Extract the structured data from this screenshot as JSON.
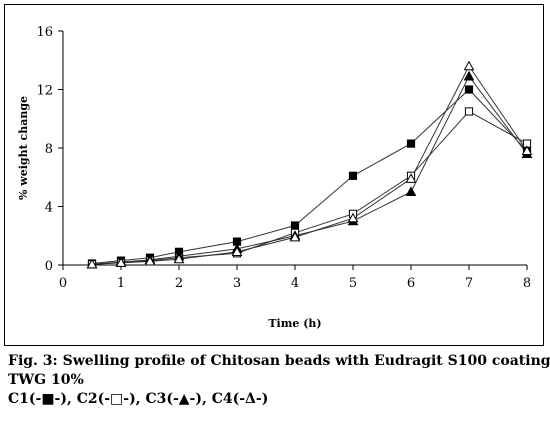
{
  "chart_data": {
    "type": "line",
    "xlabel": "Time (h)",
    "ylabel": "% weight change",
    "xlim": [
      0,
      8
    ],
    "ylim": [
      0,
      16
    ],
    "x_ticks": [
      "0",
      "1",
      "2",
      "3",
      "4",
      "5",
      "6",
      "7",
      "8"
    ],
    "y_ticks": [
      "0",
      "4",
      "8",
      "12",
      "16"
    ],
    "grid": false,
    "series": [
      {
        "name": "C1",
        "marker": "filled-square",
        "x": [
          0.5,
          1,
          1.5,
          2,
          3,
          4,
          5,
          6,
          7,
          8
        ],
        "y": [
          0.1,
          0.3,
          0.5,
          0.9,
          1.6,
          2.7,
          6.1,
          8.3,
          12.0,
          7.8
        ]
      },
      {
        "name": "C2",
        "marker": "open-square",
        "x": [
          0.5,
          1,
          1.5,
          2,
          3,
          4,
          5,
          6,
          7,
          8
        ],
        "y": [
          0.05,
          0.15,
          0.3,
          0.5,
          0.8,
          2.2,
          3.5,
          6.1,
          10.5,
          8.3
        ]
      },
      {
        "name": "C3",
        "marker": "filled-triangle",
        "x": [
          0.5,
          1,
          1.5,
          2,
          3,
          4,
          5,
          6,
          7,
          8
        ],
        "y": [
          0.05,
          0.2,
          0.35,
          0.6,
          1.1,
          2.0,
          3.0,
          5.0,
          12.9,
          7.6
        ]
      },
      {
        "name": "C4",
        "marker": "open-triangle",
        "x": [
          0.5,
          1,
          1.5,
          2,
          3,
          4,
          5,
          6,
          7,
          8
        ],
        "y": [
          0.05,
          0.15,
          0.25,
          0.4,
          0.9,
          1.9,
          3.2,
          5.9,
          13.6,
          7.8
        ]
      }
    ]
  },
  "caption": {
    "line1": "Fig. 3: Swelling profile of Chitosan beads with Eudragit S100 coating",
    "line2": "TWG 10%",
    "line3": "C1(-■-), C2(-□-), C3(-▲-), C4(-Δ-)"
  }
}
